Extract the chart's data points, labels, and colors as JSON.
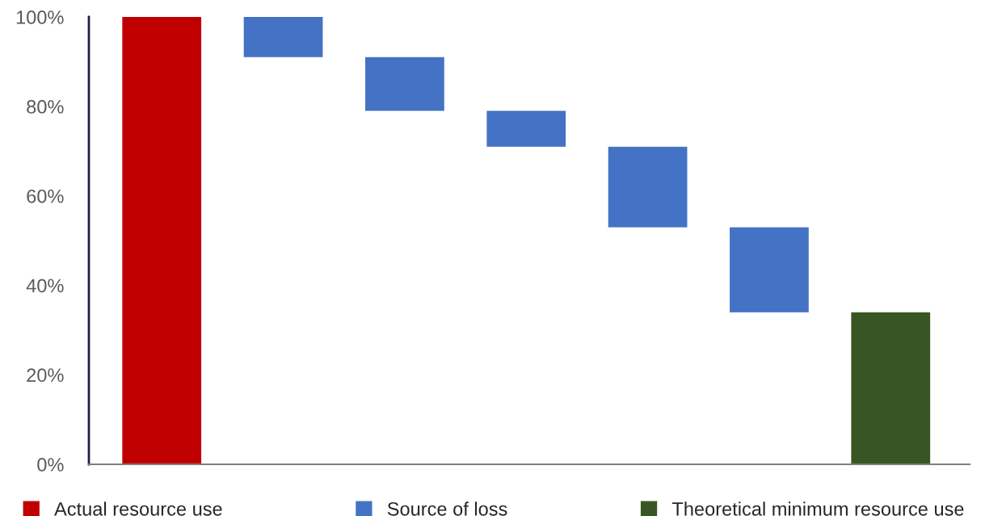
{
  "chart_data": {
    "type": "bar",
    "categories": [
      null,
      null,
      null,
      null,
      null,
      null,
      null
    ],
    "series": [
      {
        "name": "Actual resource use",
        "color": "#c00000",
        "values": [
          100,
          null,
          null,
          null,
          null,
          null,
          null
        ],
        "base": [
          0,
          null,
          null,
          null,
          null,
          null,
          null
        ]
      },
      {
        "name": "Source of loss",
        "color": "#4472c4",
        "values": [
          null,
          9,
          12,
          8,
          18,
          19,
          null
        ],
        "base": [
          null,
          91,
          79,
          71,
          53,
          34,
          null
        ]
      },
      {
        "name": "Theoretical minimum resource use",
        "color": "#375623",
        "values": [
          null,
          null,
          null,
          null,
          null,
          null,
          34
        ],
        "base": [
          null,
          null,
          null,
          null,
          null,
          null,
          0
        ]
      }
    ],
    "ylim": [
      0,
      100
    ],
    "yticks": [
      {
        "value": 0,
        "label": "0%"
      },
      {
        "value": 20,
        "label": "20%"
      },
      {
        "value": 40,
        "label": "40%"
      },
      {
        "value": 60,
        "label": "60%"
      },
      {
        "value": 80,
        "label": "80%"
      },
      {
        "value": 100,
        "label": "100%"
      }
    ],
    "tick_labels": "y",
    "grid": false,
    "legend": "bottom"
  }
}
